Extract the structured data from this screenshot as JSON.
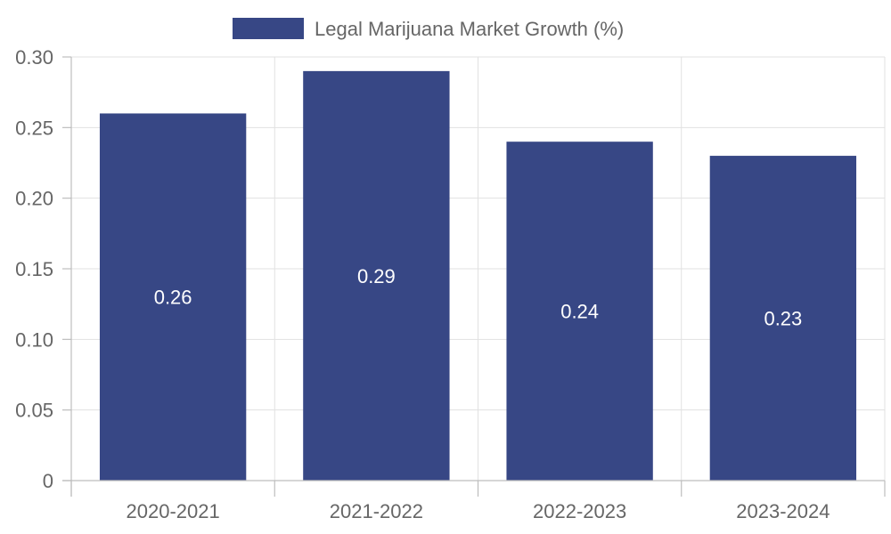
{
  "chart_data": {
    "type": "bar",
    "categories": [
      "2020-2021",
      "2021-2022",
      "2022-2023",
      "2023-2024"
    ],
    "series": [
      {
        "name": "Legal Marijuana Market Growth (%)",
        "values": [
          0.26,
          0.29,
          0.24,
          0.23
        ],
        "color": "#374785"
      }
    ],
    "ylim": [
      0,
      0.3
    ],
    "yticks": [
      "0",
      "0.05",
      "0.10",
      "0.15",
      "0.20",
      "0.25",
      "0.30"
    ],
    "data_labels": [
      "0.26",
      "0.29",
      "0.24",
      "0.23"
    ],
    "grid": true,
    "legend_position": "top-center",
    "bar_label_color": "#ffffff"
  }
}
